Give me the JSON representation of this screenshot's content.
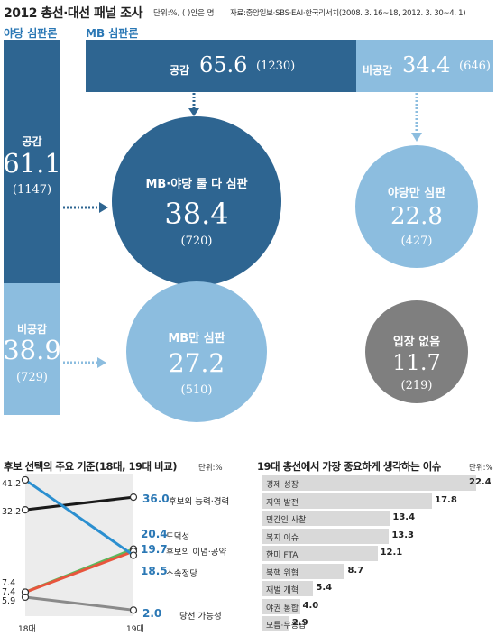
{
  "header": {
    "title": "2012 총선·대선 패널 조사",
    "unit": "단위:%, ( )안은 명",
    "source": "자료:중앙일보·SBS·EAI·한국리서치(2008. 3. 16~18, 2012. 3. 30~4. 1)"
  },
  "colors": {
    "dark_blue": "#2e6591",
    "mid_blue": "#2b78b5",
    "light_blue": "#8cbddf",
    "gray": "#7f7f7f",
    "bar_gray": "#d9d9d9"
  },
  "flow": {
    "opposition_label": "야당 심판론",
    "mb_label": "MB 심판론",
    "opp_agree": {
      "label": "공감",
      "value": "61.1",
      "count": "(1147)"
    },
    "opp_disagree": {
      "label": "비공감",
      "value": "38.9",
      "count": "(729)"
    },
    "mb_agree": {
      "label": "공감",
      "value": "65.6",
      "count": "(1230)"
    },
    "mb_disagree": {
      "label": "비공감",
      "value": "34.4",
      "count": "(646)"
    },
    "both": {
      "label": "MB·야당 둘 다 심판",
      "value": "38.4",
      "count": "(720)"
    },
    "opp_only": {
      "label": "야당만 심판",
      "value": "22.8",
      "count": "(427)"
    },
    "mb_only": {
      "label": "MB만 심판",
      "value": "27.2",
      "count": "(510)"
    },
    "none": {
      "label": "입장 없음",
      "value": "11.7",
      "count": "(219)"
    }
  },
  "chart_data": [
    {
      "type": "line",
      "title": "후보 선택의 주요 기준(18대, 19대 비교)",
      "unit": "단위:%",
      "categories": [
        "18대",
        "19대"
      ],
      "series": [
        {
          "name": "후보의 능력·경력",
          "values": [
            32.2,
            36.0
          ],
          "color": "#1a1a1a"
        },
        {
          "name": "도덕성",
          "values": [
            7.4,
            20.4
          ],
          "color": "#5cb85c"
        },
        {
          "name": "후보의 이념·공약",
          "values": [
            7.4,
            19.7
          ],
          "color": "#e8553d"
        },
        {
          "name": "소속정당",
          "values": [
            41.2,
            18.5
          ],
          "color": "#2b8fd0"
        },
        {
          "name": "당선 가능성",
          "values": [
            5.9,
            2.0
          ],
          "color": "#8a8a8a"
        }
      ],
      "left_labels": [
        "41.2",
        "32.2",
        "7.4",
        "7.4",
        "5.9"
      ],
      "right_labels": [
        "36.0",
        "20.4",
        "19.7",
        "18.5",
        "2.0"
      ]
    },
    {
      "type": "bar",
      "title": "19대 총선에서 가장 중요하게 생각하는 이슈",
      "unit": "단위:%",
      "categories": [
        "경제 성장",
        "지역 발전",
        "민간인 사찰",
        "복지 이슈",
        "한미 FTA",
        "북핵 위협",
        "재벌 개혁",
        "야권 통합",
        "모름·무응답"
      ],
      "values": [
        22.4,
        17.8,
        13.4,
        13.3,
        12.1,
        8.7,
        5.4,
        4.0,
        2.9
      ],
      "value_labels": [
        "22.4",
        "17.8",
        "13.4",
        "13.3",
        "12.1",
        "8.7",
        "5.4",
        "4.0",
        "2.9"
      ],
      "xlim": [
        0,
        22.4
      ]
    }
  ]
}
